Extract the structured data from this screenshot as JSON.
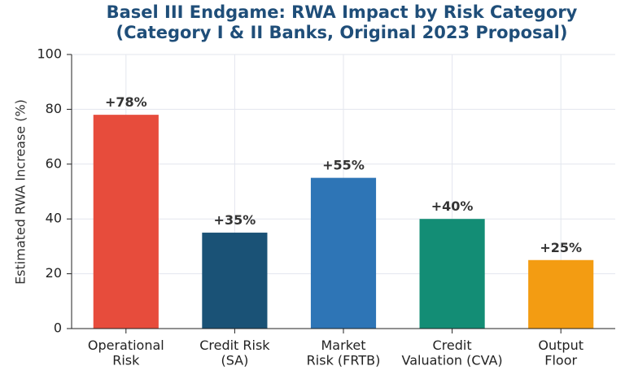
{
  "chart_data": {
    "type": "bar",
    "title": "Basel III Endgame: RWA Impact by Risk Category\n(Category I & II Banks, Original 2023 Proposal)",
    "y_label": "Estimated RWA Increase (%)",
    "categories": [
      "Operational\nRisk",
      "Credit Risk\n(SA)",
      "Market\nRisk (FRTB)",
      "Credit\nValuation (CVA)",
      "Output\nFloor"
    ],
    "values": [
      78,
      35,
      55,
      40,
      25
    ],
    "value_labels": [
      "+78%",
      "+35%",
      "+55%",
      "+40%",
      "+25%"
    ],
    "colors": [
      "#e74c3c",
      "#1a5276",
      "#2e75b6",
      "#138d75",
      "#f39c12"
    ],
    "ylim": [
      0,
      100
    ],
    "yticks": [
      0,
      20,
      40,
      60,
      80,
      100
    ],
    "grid": true
  }
}
